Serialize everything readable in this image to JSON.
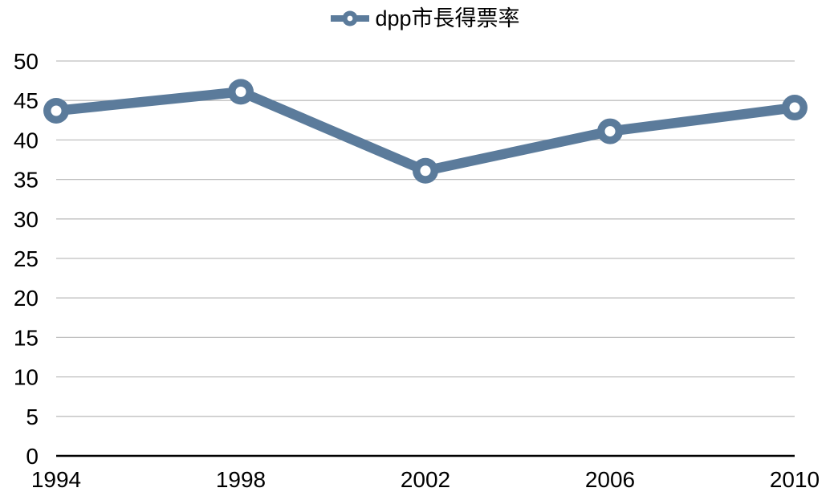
{
  "page": {
    "background_color": "#ffffff"
  },
  "legend": {
    "label": "dpp市長得票率"
  },
  "chart_data": {
    "type": "line",
    "title": "",
    "categories": [
      "1994",
      "1998",
      "2002",
      "2006",
      "2010"
    ],
    "series": [
      {
        "name": "dpp市長得票率",
        "values": [
          43.7,
          46.1,
          36.1,
          41.1,
          44.1
        ],
        "color": "#5b7b9b",
        "marker": "donut",
        "marker_hole_color": "#ffffff"
      }
    ],
    "xlabel": "",
    "ylabel": "",
    "ylim": [
      0,
      50
    ],
    "yticks": [
      0,
      5,
      10,
      15,
      20,
      25,
      30,
      35,
      40,
      45,
      50
    ],
    "grid": true,
    "legend_position": "top-center",
    "gridline_color": "#bfbfbf",
    "axis_line_color": "#000000",
    "tick_label_color": "#000000"
  }
}
